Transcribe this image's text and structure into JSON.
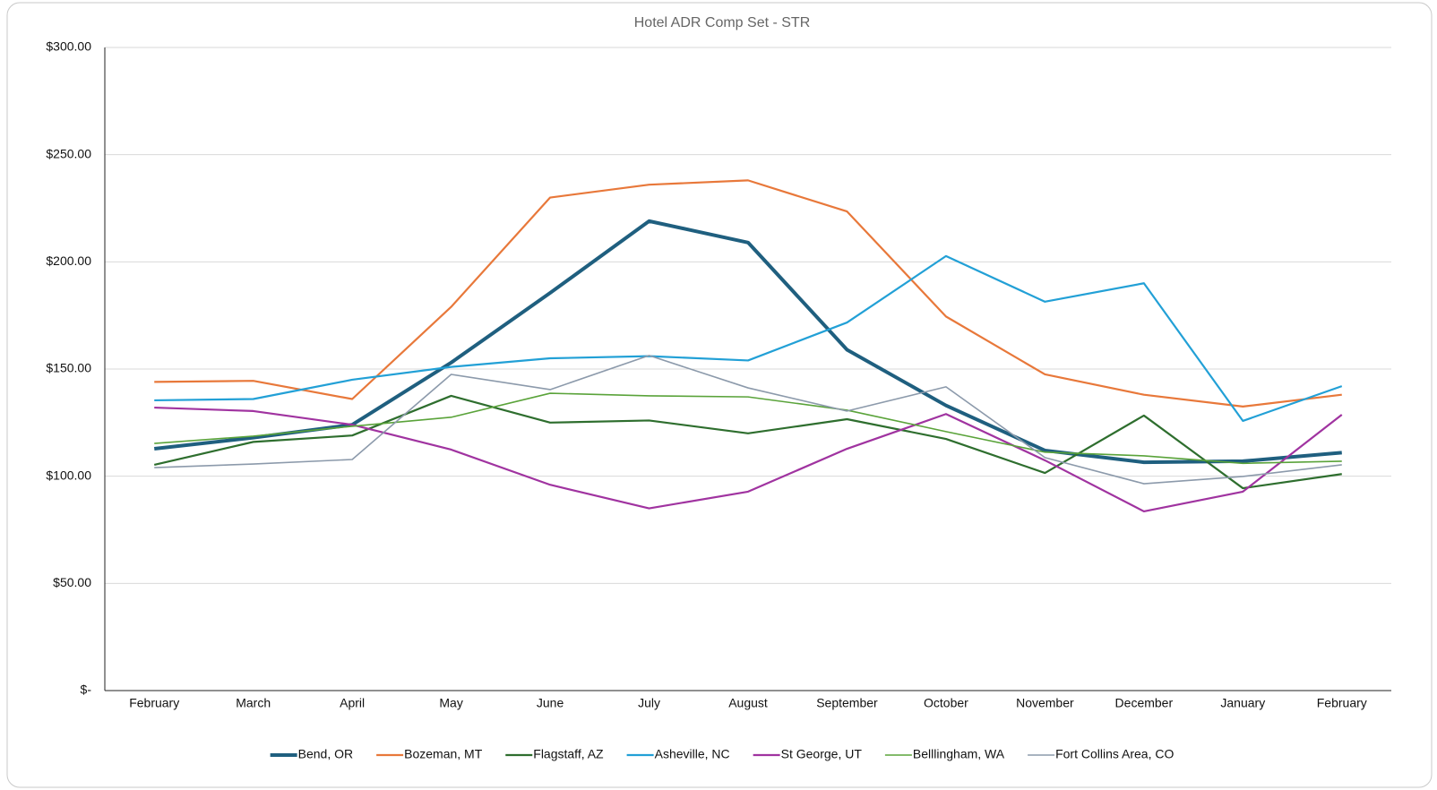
{
  "chart_data": {
    "type": "line",
    "title": "Hotel ADR Comp Set -  STR",
    "categories": [
      "February",
      "March",
      "April",
      "May",
      "June",
      "July",
      "August",
      "September",
      "October",
      "November",
      "December",
      "January",
      "February"
    ],
    "ylim": [
      0,
      300
    ],
    "yticks": [
      {
        "value": 0,
        "label": "$-"
      },
      {
        "value": 50,
        "label": "$50.00"
      },
      {
        "value": 100,
        "label": "$100.00"
      },
      {
        "value": 150,
        "label": "$150.00"
      },
      {
        "value": 200,
        "label": "$200.00"
      },
      {
        "value": 250,
        "label": "$250.00"
      },
      {
        "value": 300,
        "label": "$300.00"
      }
    ],
    "grid": true,
    "legend": "bottom",
    "series": [
      {
        "name": "Bend, OR",
        "color": "#1f5f7f",
        "line_width": 4,
        "values": [
          112.8,
          118,
          124,
          153,
          185.5,
          219,
          209,
          159,
          133,
          112,
          106.5,
          107,
          111
        ]
      },
      {
        "name": "Bozeman, MT",
        "color": "#e8783a",
        "line_width": 2.2,
        "values": [
          144,
          144.5,
          136,
          179,
          230,
          236,
          238,
          223.5,
          174.5,
          147.5,
          138,
          132.5,
          138
        ]
      },
      {
        "name": "Flagstaff, AZ",
        "color": "#2e6e2e",
        "line_width": 2.2,
        "values": [
          105.3,
          116,
          119,
          137.5,
          125,
          126,
          120,
          126.6,
          117.4,
          101.5,
          128.3,
          94.4,
          101
        ]
      },
      {
        "name": "Asheville, NC",
        "color": "#22a0d6",
        "line_width": 2.2,
        "values": [
          135.4,
          136,
          145,
          151,
          155,
          156,
          154,
          171.7,
          202.7,
          181.4,
          190,
          125.8,
          142
        ]
      },
      {
        "name": "St George, UT",
        "color": "#a033a0",
        "line_width": 2.2,
        "values": [
          132,
          130.4,
          124,
          112.4,
          96,
          85,
          92.8,
          112.8,
          129,
          107.4,
          83.6,
          92.8,
          128.7
        ]
      },
      {
        "name": "Belllingham, WA",
        "color": "#5aa33a",
        "line_width": 1.6,
        "values": [
          115.3,
          118.7,
          123.3,
          127.5,
          138.7,
          137.5,
          137,
          130.8,
          120.8,
          111.2,
          109.5,
          106,
          107
        ]
      },
      {
        "name": "Fort Collins Area, CO",
        "color": "#8c9aab",
        "line_width": 1.6,
        "values": [
          104,
          105.7,
          107.8,
          147.5,
          140.4,
          156.3,
          141.2,
          130.4,
          141.7,
          108.7,
          96.5,
          99.9,
          105.3
        ]
      }
    ]
  }
}
